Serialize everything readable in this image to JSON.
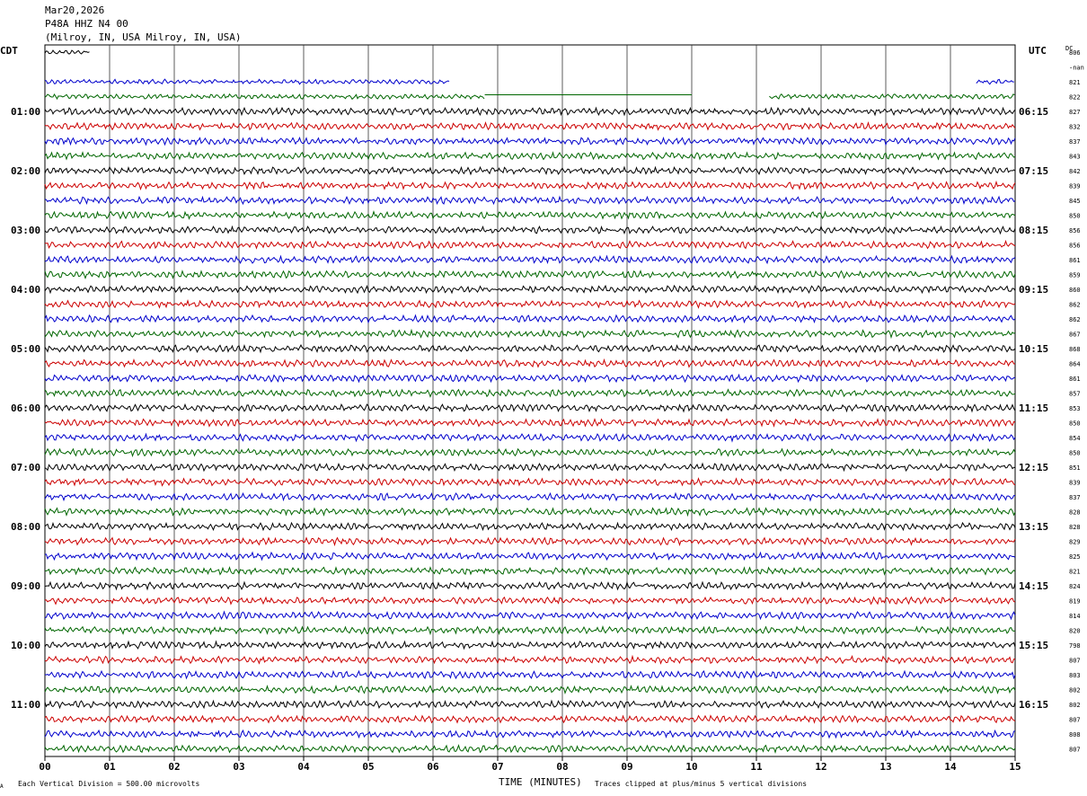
{
  "header": {
    "date": "Mar20,2026",
    "station": "P48A HHZ N4 00",
    "location": "(Milroy, IN, USA Milroy, IN, USA)"
  },
  "left_tz": "CDT",
  "right_tz": "UTC",
  "dc_label": "DC",
  "footer": {
    "scale_note": "Each Vertical Division =  500.00 microvolts",
    "xlabel": "TIME (MINUTES)",
    "clip_note": "Traces clipped at plus/minus 5 vertical divisions",
    "corner_mark": "A"
  },
  "colors": [
    "#000000",
    "#cc0000",
    "#0000cc",
    "#006600"
  ],
  "chart_data": {
    "type": "line",
    "xlabel": "TIME (MINUTES)",
    "xlim": [
      0,
      15
    ],
    "x_ticks": [
      "00",
      "01",
      "02",
      "03",
      "04",
      "05",
      "06",
      "07",
      "08",
      "09",
      "10",
      "11",
      "12",
      "13",
      "14",
      "15"
    ],
    "row_interval_minutes": 15,
    "left_hour_labels": [
      "01:00",
      "02:00",
      "03:00",
      "04:00",
      "05:00",
      "06:00",
      "07:00",
      "08:00",
      "09:00",
      "10:00",
      "11:00"
    ],
    "right_hour_labels": [
      "06:15",
      "07:15",
      "08:15",
      "09:15",
      "10:15",
      "11:15",
      "12:15",
      "13:15",
      "14:15",
      "15:15",
      "16:15"
    ],
    "dc_values": [
      "806",
      "-nan",
      "821",
      "822",
      "827",
      "832",
      "837",
      "843",
      "842",
      "839",
      "845",
      "850",
      "856",
      "856",
      "861",
      "859",
      "860",
      "862",
      "862",
      "867",
      "868",
      "864",
      "861",
      "857",
      "853",
      "850",
      "854",
      "850",
      "851",
      "839",
      "837",
      "828",
      "828",
      "829",
      "825",
      "821",
      "824",
      "819",
      "814",
      "820",
      "798",
      "807",
      "803",
      "802",
      "802",
      "807",
      "808",
      "807"
    ],
    "gaps": [
      {
        "row": 0,
        "data_until_min": 0.9
      },
      {
        "row": 1,
        "data_from_min": 0.0,
        "data_until_min": 0.0
      },
      {
        "row": 2,
        "data_until_min": 6.25,
        "resumes_min": 14.4
      },
      {
        "row": 3,
        "flat_from_min": 6.8,
        "flat_until_min": 10.0,
        "resumes_min": 11.2
      }
    ]
  }
}
